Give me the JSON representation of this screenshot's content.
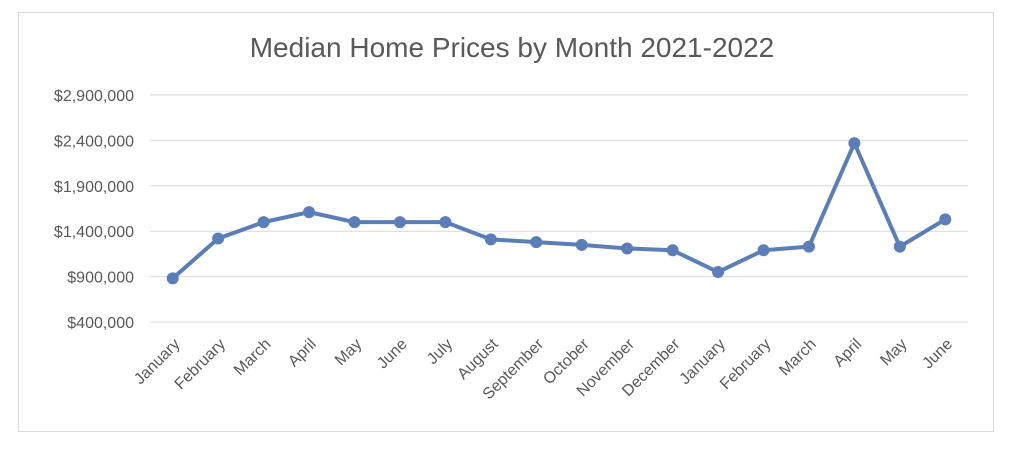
{
  "chart_data": {
    "type": "line",
    "title": "Median Home Prices by Month 2021-2022",
    "xlabel": "",
    "ylabel": "",
    "categories": [
      "January",
      "February",
      "March",
      "April",
      "May",
      "June",
      "July",
      "August",
      "September",
      "October",
      "November",
      "December",
      "January",
      "February",
      "March",
      "April",
      "May",
      "June"
    ],
    "series": [
      {
        "values": [
          880000,
          1320000,
          1500000,
          1610000,
          1500000,
          1500000,
          1500000,
          1310000,
          1280000,
          1250000,
          1210000,
          1190000,
          950000,
          1190000,
          1230000,
          2370000,
          1230000,
          1530000
        ],
        "color": "#5b7db8"
      }
    ],
    "yticks": [
      "$2,900,000",
      "$2,400,000",
      "$1,900,000",
      "$1,400,000",
      "$900,000",
      "$400,000"
    ],
    "ytick_values": [
      2900000,
      2400000,
      1900000,
      1400000,
      900000,
      400000
    ],
    "ylim": [
      400000,
      2900000
    ],
    "grid": true,
    "legend": "none"
  }
}
